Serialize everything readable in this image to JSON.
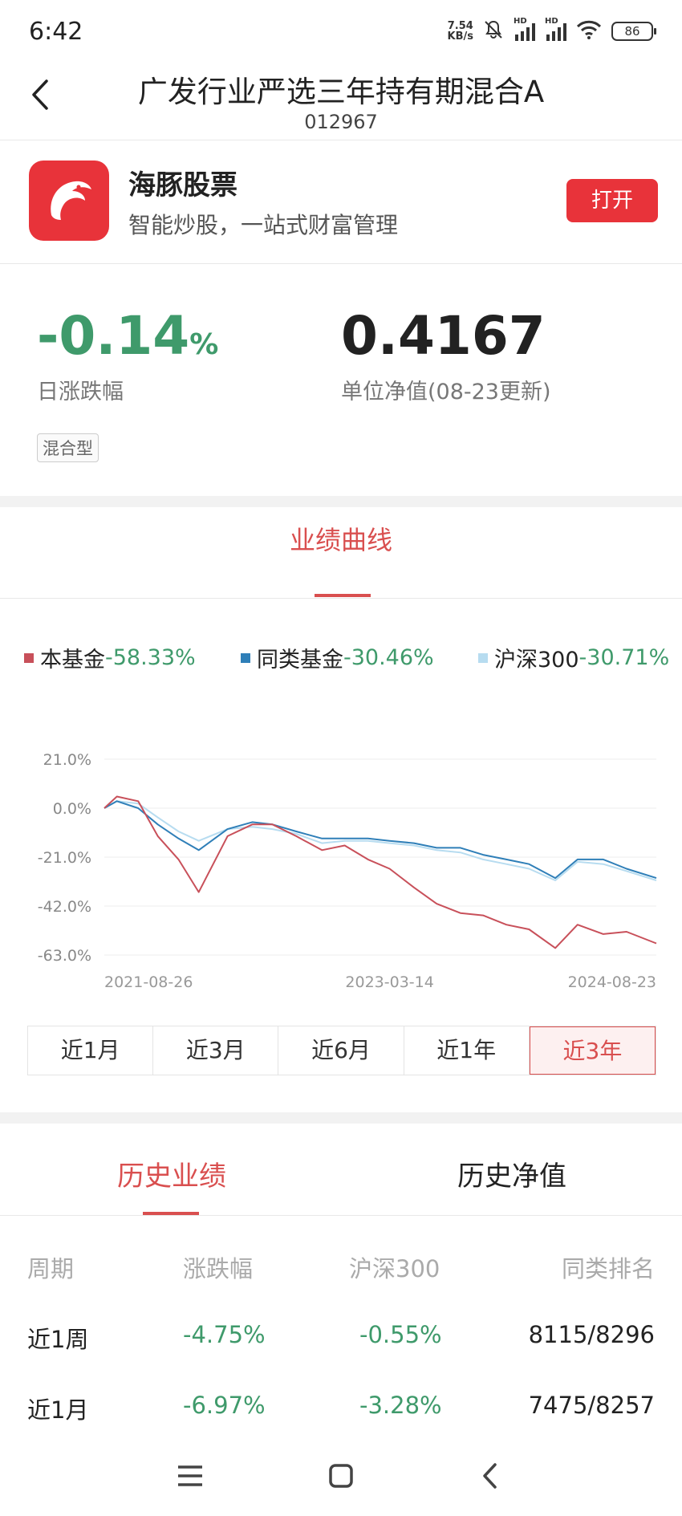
{
  "status_bar": {
    "time": "6:42",
    "net_speed_value": "7.54",
    "net_speed_unit": "KB/s",
    "hd1": "HD",
    "hd2": "HD",
    "battery": "86"
  },
  "header": {
    "title": "广发行业严选三年持有期混合A",
    "code": "012967"
  },
  "banner": {
    "app_name": "海豚股票",
    "slogan": "智能炒股，一站式财富管理",
    "open_label": "打开",
    "accent": "#e8333a"
  },
  "quote": {
    "daily_change": "-0.14",
    "daily_change_unit": "%",
    "daily_change_label": "日涨跌幅",
    "nav": "0.4167",
    "nav_label": "单位净值(08-23更新)",
    "fund_type": "混合型"
  },
  "performance": {
    "tab_label": "业绩曲线",
    "legend": [
      {
        "name": "本基金",
        "value": "-58.33%",
        "color": "#c8505a"
      },
      {
        "name": "同类基金",
        "value": "-30.46%",
        "color": "#2f7fb8"
      },
      {
        "name": "沪深300",
        "value": "-30.71%",
        "color": "#b7dcf0"
      }
    ],
    "periods": [
      "近1月",
      "近3月",
      "近6月",
      "近1年",
      "近3年"
    ],
    "active_period": "近3年"
  },
  "chart_data": {
    "type": "line",
    "x": [
      "2021-08-26",
      "2021-09-20",
      "2021-11-01",
      "2021-12-10",
      "2022-01-20",
      "2022-03-01",
      "2022-04-27",
      "2022-06-15",
      "2022-07-25",
      "2022-09-10",
      "2022-10-31",
      "2022-12-15",
      "2023-01-30",
      "2023-03-14",
      "2023-05-01",
      "2023-06-15",
      "2023-08-01",
      "2023-09-15",
      "2023-10-31",
      "2023-12-15",
      "2024-02-05",
      "2024-03-20",
      "2024-05-10",
      "2024-06-25",
      "2024-08-23"
    ],
    "x_ticks": [
      "2021-08-26",
      "2023-03-14",
      "2024-08-23"
    ],
    "y_ticks": [
      "21.0%",
      "0.0%",
      "-21.0%",
      "-42.0%",
      "-63.0%"
    ],
    "ylim": [
      -63,
      21
    ],
    "grid": true,
    "series": [
      {
        "name": "本基金",
        "color": "#c8505a",
        "values": [
          0,
          5,
          3,
          -12,
          -22,
          -36,
          -12,
          -7,
          -7,
          -12,
          -18,
          -16,
          -22,
          -26,
          -34,
          -41,
          -45,
          -46,
          -50,
          -52,
          -60,
          -50,
          -54,
          -53,
          -58
        ]
      },
      {
        "name": "同类基金",
        "color": "#2f7fb8",
        "values": [
          0,
          3,
          0,
          -7,
          -13,
          -18,
          -9,
          -6,
          -7,
          -10,
          -13,
          -13,
          -13,
          -14,
          -15,
          -17,
          -17,
          -20,
          -22,
          -24,
          -30,
          -22,
          -22,
          -26,
          -30
        ]
      },
      {
        "name": "沪深300",
        "color": "#b7dcf0",
        "values": [
          0,
          3,
          2,
          -4,
          -10,
          -14,
          -9,
          -8,
          -9,
          -11,
          -15,
          -14,
          -14,
          -15,
          -16,
          -18,
          -19,
          -22,
          -24,
          -26,
          -31,
          -23,
          -24,
          -27,
          -31
        ]
      }
    ]
  },
  "history": {
    "tabs": [
      "历史业绩",
      "历史净值"
    ],
    "columns": [
      "周期",
      "涨跌幅",
      "沪深300",
      "同类排名"
    ],
    "rows": [
      {
        "period": "近1周",
        "change": "-4.75%",
        "csi300": "-0.55%",
        "rank": "8115/8296"
      },
      {
        "period": "近1月",
        "change": "-6.97%",
        "csi300": "-3.28%",
        "rank": "7475/8257"
      }
    ]
  },
  "icons": {
    "back": "chevron-left-icon",
    "menu": "menu-icon",
    "home": "square-icon",
    "nav_back": "chevron-left-icon"
  }
}
